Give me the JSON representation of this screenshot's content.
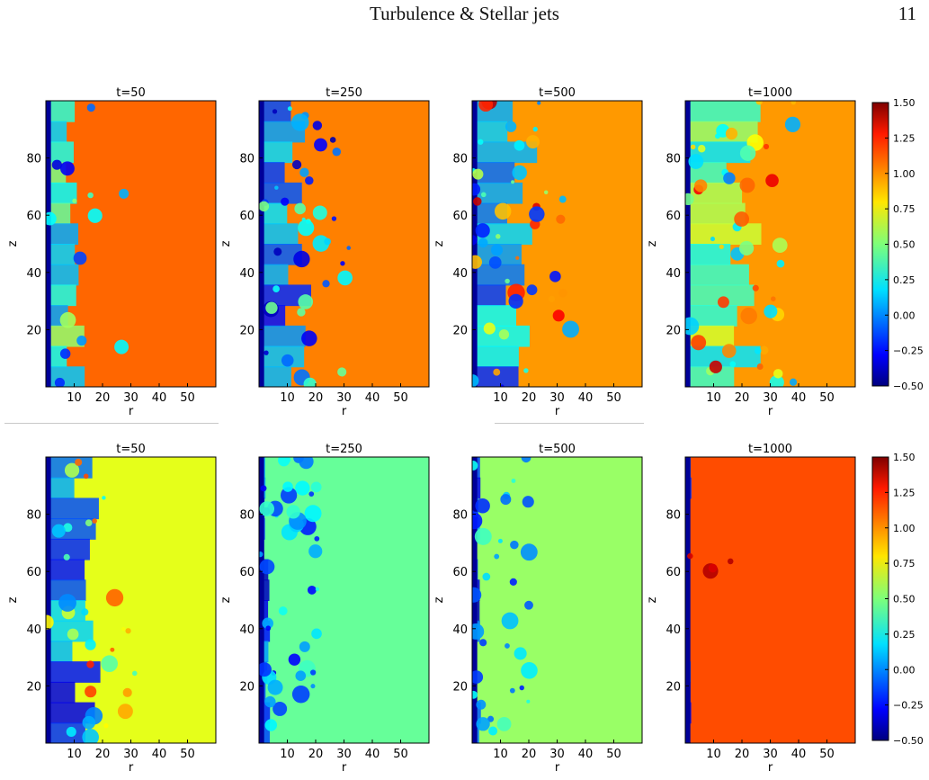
{
  "header": {
    "title": "Turbulence & Stellar jets",
    "page_number": "11"
  },
  "figure": {
    "colorbar": {
      "ticks": [
        "1.50",
        "1.25",
        "1.00",
        "0.75",
        "0.50",
        "0.25",
        "0.00",
        "−0.25",
        "−0.50"
      ],
      "colormap": "jet"
    },
    "rows": [
      {
        "panels": [
          {
            "title": "t=50",
            "xlabel": "r",
            "ylabel": "z"
          },
          {
            "title": "t=250",
            "xlabel": "r",
            "ylabel": "z"
          },
          {
            "title": "t=500",
            "xlabel": "r",
            "ylabel": "z"
          },
          {
            "title": "t=1000",
            "xlabel": "r",
            "ylabel": "z"
          }
        ]
      },
      {
        "panels": [
          {
            "title": "t=50",
            "xlabel": "r",
            "ylabel": "z"
          },
          {
            "title": "t=250",
            "xlabel": "r",
            "ylabel": "z"
          },
          {
            "title": "t=500",
            "xlabel": "r",
            "ylabel": "z"
          },
          {
            "title": "t=1000",
            "xlabel": "r",
            "ylabel": "z"
          }
        ]
      }
    ],
    "xticks": [
      "10",
      "20",
      "30",
      "40",
      "50"
    ],
    "yticks": [
      "20",
      "40",
      "60",
      "80"
    ]
  },
  "chart_data": [
    {
      "type": "heatmap",
      "title": "t=50",
      "xlabel": "r",
      "ylabel": "z",
      "xlim": [
        0,
        60
      ],
      "ylim": [
        0,
        100
      ]
    },
    {
      "type": "heatmap",
      "title": "t=250",
      "xlabel": "r",
      "ylabel": "z",
      "xlim": [
        0,
        60
      ],
      "ylim": [
        0,
        100
      ]
    },
    {
      "type": "heatmap",
      "title": "t=500",
      "xlabel": "r",
      "ylabel": "z",
      "xlim": [
        0,
        60
      ],
      "ylim": [
        0,
        100
      ]
    },
    {
      "type": "heatmap",
      "title": "t=1000",
      "xlabel": "r",
      "ylabel": "z",
      "xlim": [
        0,
        60
      ],
      "ylim": [
        0,
        100
      ],
      "colorbar_range": [
        -0.5,
        1.5
      ]
    },
    {
      "type": "heatmap",
      "title": "t=50",
      "xlabel": "r",
      "ylabel": "z",
      "xlim": [
        0,
        60
      ],
      "ylim": [
        0,
        100
      ]
    },
    {
      "type": "heatmap",
      "title": "t=250",
      "xlabel": "r",
      "ylabel": "z",
      "xlim": [
        0,
        60
      ],
      "ylim": [
        0,
        100
      ]
    },
    {
      "type": "heatmap",
      "title": "t=500",
      "xlabel": "r",
      "ylabel": "z",
      "xlim": [
        0,
        60
      ],
      "ylim": [
        0,
        100
      ]
    },
    {
      "type": "heatmap",
      "title": "t=1000",
      "xlabel": "r",
      "ylabel": "z",
      "xlim": [
        0,
        60
      ],
      "ylim": [
        0,
        100
      ],
      "colorbar_range": [
        -0.5,
        1.5
      ]
    }
  ]
}
